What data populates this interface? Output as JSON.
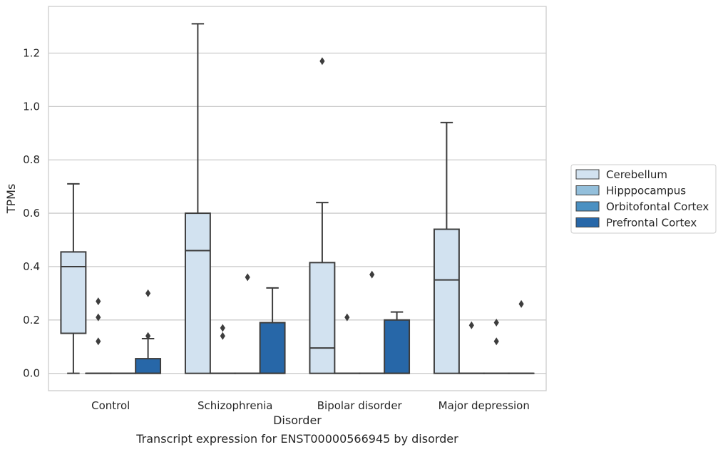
{
  "chart_data": {
    "type": "box",
    "title": "",
    "xlabel": "Disorder",
    "ylabel": "TPMs",
    "ylim": [
      -0.065,
      1.375
    ],
    "yticks": [
      "0.0",
      "0.2",
      "0.4",
      "0.6",
      "0.8",
      "1.0",
      "1.2"
    ],
    "grid": "horizontal",
    "legend_placement": "right",
    "categories": [
      "Control",
      "Schizophrenia",
      "Bipolar disorder",
      "Major depression"
    ],
    "series": [
      {
        "name": "Cerebellum",
        "color": "#d2e2f0",
        "boxes": [
          {
            "q1": 0.15,
            "median": 0.4,
            "q3": 0.455,
            "whisker_low": 0.0,
            "whisker_high": 0.71,
            "outliers": []
          },
          {
            "q1": 0.0,
            "median": 0.46,
            "q3": 0.6,
            "whisker_low": 0.0,
            "whisker_high": 1.31,
            "outliers": []
          },
          {
            "q1": 0.0,
            "median": 0.095,
            "q3": 0.415,
            "whisker_low": 0.0,
            "whisker_high": 0.64,
            "outliers": [
              1.17
            ]
          },
          {
            "q1": 0.0,
            "median": 0.35,
            "q3": 0.54,
            "whisker_low": 0.0,
            "whisker_high": 0.94,
            "outliers": []
          }
        ]
      },
      {
        "name": "Hipppocampus",
        "color": "#93bfdb",
        "boxes": [
          {
            "q1": 0.0,
            "median": 0.0,
            "q3": 0.0,
            "whisker_low": 0.0,
            "whisker_high": 0.0,
            "outliers": [
              0.12,
              0.21,
              0.27
            ]
          },
          {
            "q1": 0.0,
            "median": 0.0,
            "q3": 0.0,
            "whisker_low": 0.0,
            "whisker_high": 0.0,
            "outliers": [
              0.14,
              0.17
            ]
          },
          {
            "q1": 0.0,
            "median": 0.0,
            "q3": 0.0,
            "whisker_low": 0.0,
            "whisker_high": 0.0,
            "outliers": [
              0.21
            ]
          },
          {
            "q1": 0.0,
            "median": 0.0,
            "q3": 0.0,
            "whisker_low": 0.0,
            "whisker_high": 0.0,
            "outliers": [
              0.18
            ]
          }
        ]
      },
      {
        "name": "Orbitofontal Cortex",
        "color": "#4a90c2",
        "boxes": [
          {
            "q1": 0.0,
            "median": 0.0,
            "q3": 0.0,
            "whisker_low": 0.0,
            "whisker_high": 0.0,
            "outliers": []
          },
          {
            "q1": 0.0,
            "median": 0.0,
            "q3": 0.0,
            "whisker_low": 0.0,
            "whisker_high": 0.0,
            "outliers": [
              0.36
            ]
          },
          {
            "q1": 0.0,
            "median": 0.0,
            "q3": 0.0,
            "whisker_low": 0.0,
            "whisker_high": 0.0,
            "outliers": [
              0.37
            ]
          },
          {
            "q1": 0.0,
            "median": 0.0,
            "q3": 0.0,
            "whisker_low": 0.0,
            "whisker_high": 0.0,
            "outliers": [
              0.12,
              0.19
            ]
          }
        ]
      },
      {
        "name": "Prefrontal Cortex",
        "color": "#2767a8",
        "boxes": [
          {
            "q1": 0.0,
            "median": 0.0,
            "q3": 0.055,
            "whisker_low": 0.0,
            "whisker_high": 0.13,
            "outliers": [
              0.14,
              0.3
            ]
          },
          {
            "q1": 0.0,
            "median": 0.0,
            "q3": 0.19,
            "whisker_low": 0.0,
            "whisker_high": 0.32,
            "outliers": []
          },
          {
            "q1": 0.0,
            "median": 0.0,
            "q3": 0.2,
            "whisker_low": 0.0,
            "whisker_high": 0.23,
            "outliers": []
          },
          {
            "q1": 0.0,
            "median": 0.0,
            "q3": 0.0,
            "whisker_low": 0.0,
            "whisker_high": 0.0,
            "outliers": [
              0.26
            ]
          }
        ]
      }
    ],
    "caption": "Transcript expression for ENST00000566945 by disorder"
  }
}
